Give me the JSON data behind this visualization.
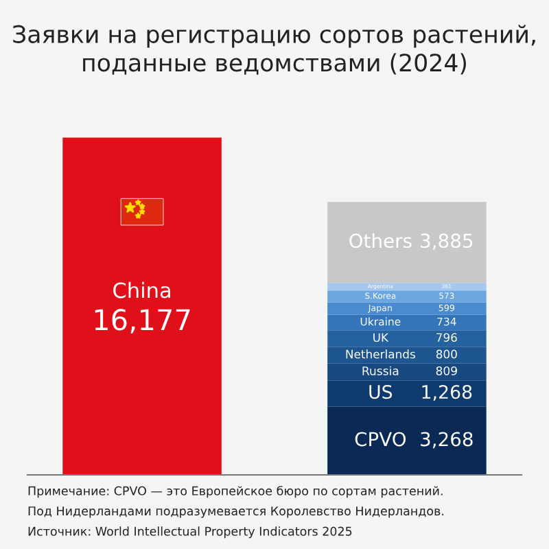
{
  "chart_data": {
    "type": "bar",
    "stacked": true,
    "title": "Заявки на регистрацию сортов растений,\nподанные ведомствами (2024)",
    "categories": [
      null,
      null
    ],
    "series": [
      {
        "name": "China",
        "color": "#e0101a",
        "values": [
          16177,
          null
        ],
        "value_labels": [
          "16,177",
          null
        ]
      },
      {
        "name": "CPVO",
        "color": "#0a2a55",
        "values": [
          null,
          3268
        ],
        "value_labels": [
          null,
          "3,268"
        ]
      },
      {
        "name": "US",
        "color": "#0f3a6e",
        "values": [
          null,
          1268
        ],
        "value_labels": [
          null,
          "1,268"
        ]
      },
      {
        "name": "Russia",
        "color": "#17487f",
        "values": [
          null,
          809
        ],
        "value_labels": [
          null,
          "809"
        ]
      },
      {
        "name": "Netherlands",
        "color": "#1d5590",
        "values": [
          null,
          800
        ],
        "value_labels": [
          null,
          "800"
        ]
      },
      {
        "name": "UK",
        "color": "#25619f",
        "values": [
          null,
          796
        ],
        "value_labels": [
          null,
          "796"
        ]
      },
      {
        "name": "Ukraine",
        "color": "#3474b8",
        "values": [
          null,
          734
        ],
        "value_labels": [
          null,
          "734"
        ]
      },
      {
        "name": "Japan",
        "color": "#4a8bd0",
        "values": [
          null,
          599
        ],
        "value_labels": [
          null,
          "599"
        ]
      },
      {
        "name": "S.Korea",
        "color": "#6ca6e0",
        "values": [
          null,
          573
        ],
        "value_labels": [
          null,
          "573"
        ]
      },
      {
        "name": "Argentina",
        "color": "#a6c8ee",
        "values": [
          null,
          361
        ],
        "value_labels": [
          null,
          "361"
        ]
      },
      {
        "name": "Others",
        "color": "#c8c8c8",
        "values": [
          null,
          3885
        ],
        "value_labels": [
          null,
          "3,885"
        ]
      }
    ],
    "annotations": [
      "Примечание: CPVO — это Европейское бюро по сортам растений.",
      "Под Нидерландами подразумевается Королевство Нидерландов.",
      "Источник: World Intellectual Property Indicators 2025"
    ]
  }
}
